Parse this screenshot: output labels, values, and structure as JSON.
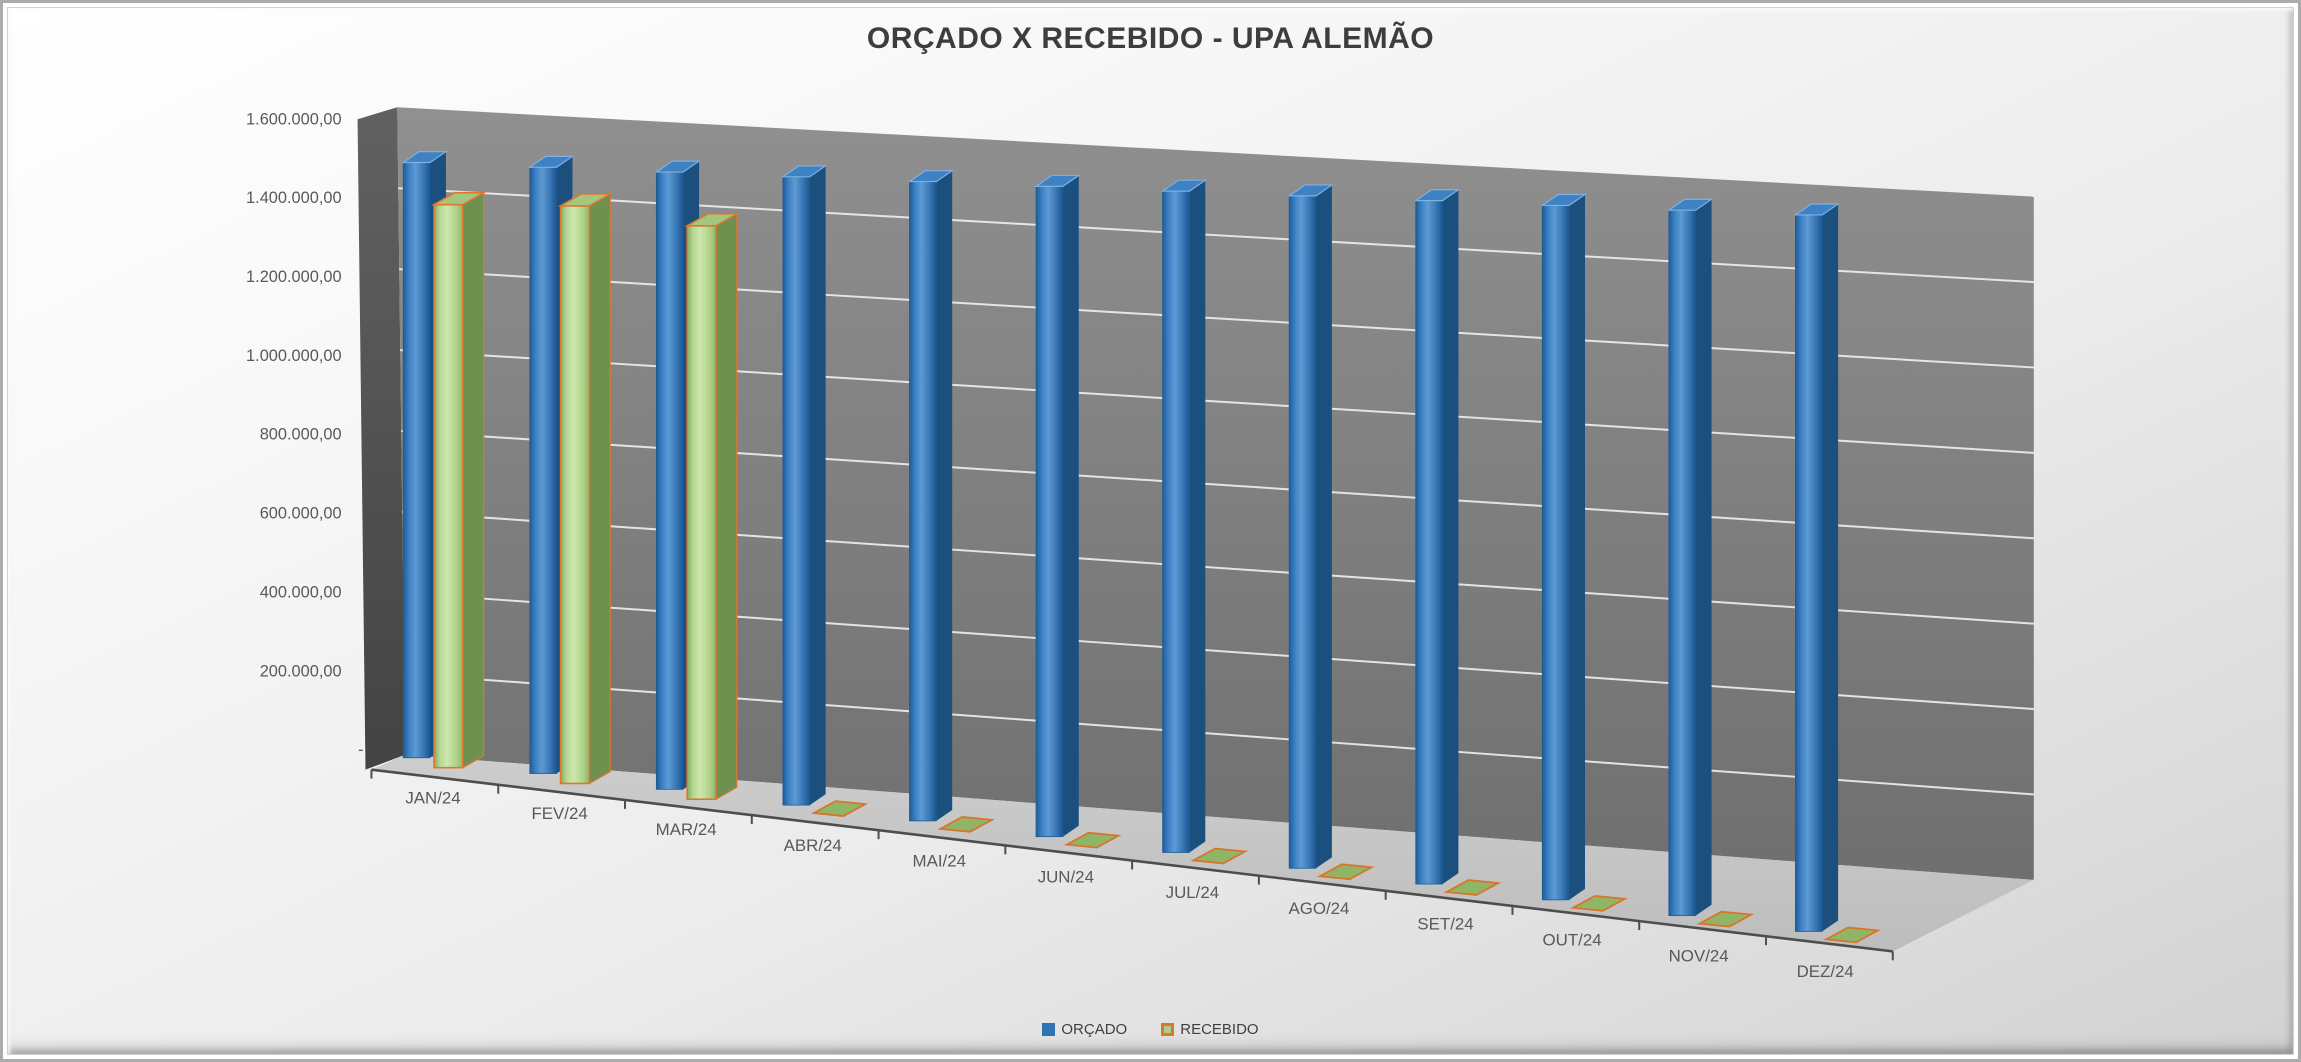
{
  "title": "ORÇADO X RECEBIDO - UPA ALEMÃO",
  "chart_data": {
    "type": "bar",
    "subtype": "3d-clustered-column",
    "title": "ORÇADO X RECEBIDO - UPA ALEMÃO",
    "categories": [
      "JAN/24",
      "FEV/24",
      "MAR/24",
      "ABR/24",
      "MAI/24",
      "JUN/24",
      "JUL/24",
      "AGO/24",
      "SET/24",
      "OUT/24",
      "NOV/24",
      "DEZ/24"
    ],
    "series": [
      {
        "name": "ORÇADO",
        "color": "#2E74B5",
        "values": [
          1480000,
          1480000,
          1480000,
          1480000,
          1480000,
          1480000,
          1480000,
          1480000,
          1480000,
          1480000,
          1480000,
          1480000
        ]
      },
      {
        "name": "RECEBIDO",
        "color": "#A9D08E",
        "border_color": "#E0762C",
        "values": [
          1400000,
          1410000,
          1375000,
          0,
          0,
          0,
          0,
          0,
          0,
          0,
          0,
          0
        ]
      }
    ],
    "xlabel": "",
    "ylabel": "",
    "ylim": [
      0,
      1600000
    ],
    "ytick_step": 200000,
    "ytick_labels": [
      "-",
      "200.000,00",
      "400.000,00",
      "600.000,00",
      "800.000,00",
      "1.000.000,00",
      "1.200.000,00",
      "1.400.000,00",
      "1.600.000,00"
    ],
    "grid": true,
    "legend_position": "bottom"
  },
  "colors": {
    "title_text": "#3D3D3D",
    "axis_text": "#595959",
    "legend_text": "#404040",
    "back_wall_top": "#909090",
    "back_wall_bottom": "#6F6F6F",
    "left_wall_top": "#616161",
    "left_wall_bottom": "#434343",
    "floor_top": "#CDCDCD",
    "floor_bottom": "#BDBDBD",
    "gridline": "#F0F0F0",
    "axis_line": "#4D4D4D",
    "blue_side": "#1B4F7E",
    "blue_top": "#3E82C4",
    "green_side": "#6E9150",
    "green_top": "#A3C77E",
    "zero_tile_fill": "#90B566",
    "frame_border": "#ABABAB"
  }
}
